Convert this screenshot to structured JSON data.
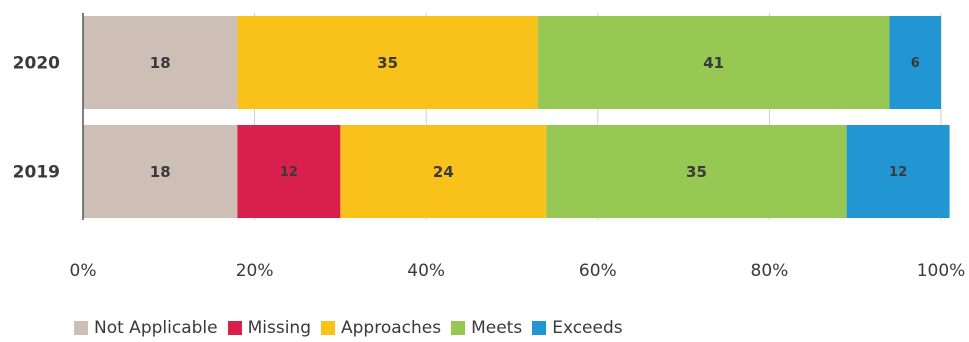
{
  "chart_data": {
    "type": "bar",
    "orientation": "horizontal",
    "stacked": true,
    "categories": [
      "2020",
      "2019"
    ],
    "series": [
      {
        "name": "Not Applicable",
        "color": "#cdbfb5",
        "values": [
          18,
          18
        ]
      },
      {
        "name": "Missing",
        "color": "#d91f4c",
        "values": [
          0,
          12
        ]
      },
      {
        "name": "Approaches",
        "color": "#f8c21a",
        "values": [
          35,
          24
        ]
      },
      {
        "name": "Meets",
        "color": "#97c853",
        "values": [
          41,
          35
        ]
      },
      {
        "name": "Exceeds",
        "color": "#2196d3",
        "values": [
          6,
          12
        ]
      }
    ],
    "xlim": [
      0,
      100
    ],
    "xticks": [
      0,
      20,
      40,
      60,
      80,
      100
    ],
    "xtick_labels": [
      "0%",
      "20%",
      "40%",
      "60%",
      "80%",
      "100%"
    ],
    "title": "",
    "xlabel": "",
    "ylabel": "",
    "grid": true,
    "legend_position": "bottom-left"
  }
}
